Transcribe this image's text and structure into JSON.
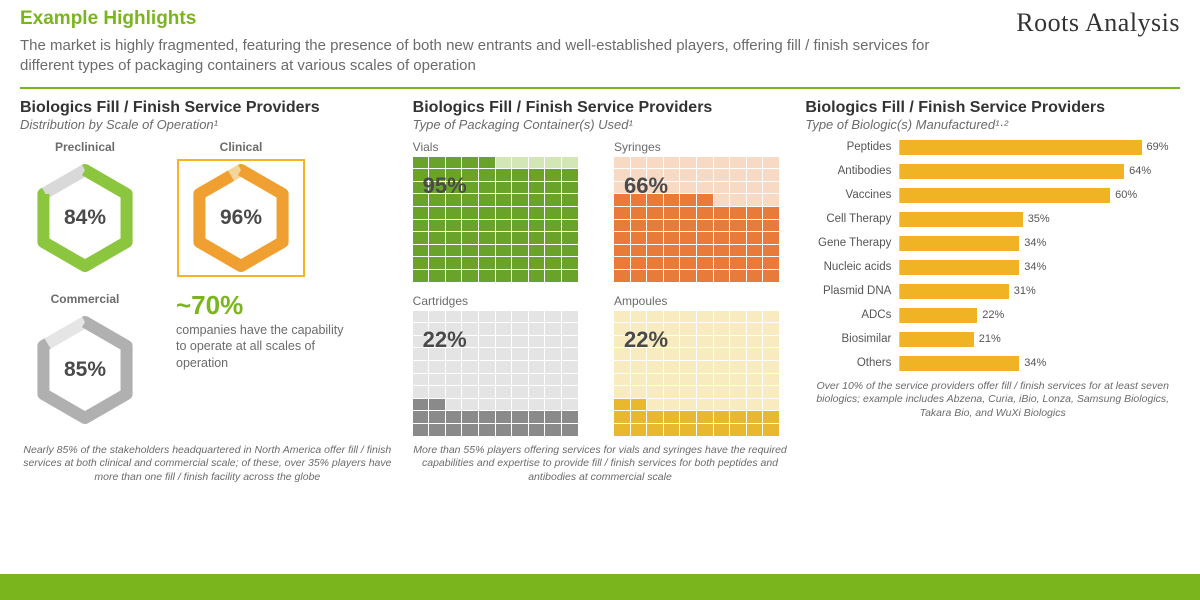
{
  "header": {
    "title": "Example Highlights",
    "subtitle": "The market is highly fragmented, featuring the presence of both new entrants and well-established players, offering fill / finish services for different types of packaging containers at various scales of operation",
    "logo": "Roots Analysis"
  },
  "colors": {
    "accent_green": "#7ab51d",
    "text_gray": "#6b6b6b",
    "rule": "#7ab51d"
  },
  "panel1": {
    "title": "Biologics Fill / Finish Service Providers",
    "subtitle": "Distribution by Scale of Operation¹",
    "hexes": [
      {
        "label": "Preclinical",
        "value": "84%",
        "pct": 84,
        "stroke_fill": "#8cc63f",
        "stroke_empty": "#d9d9d9",
        "highlight": false
      },
      {
        "label": "Clinical",
        "value": "96%",
        "pct": 96,
        "stroke_fill": "#f0a030",
        "stroke_empty": "#f5d49a",
        "highlight": true,
        "highlight_color": "#f5b325"
      },
      {
        "label": "Commercial",
        "value": "85%",
        "pct": 85,
        "stroke_fill": "#b0b0b0",
        "stroke_empty": "#e5e5e5",
        "highlight": false
      }
    ],
    "callout": {
      "big": "~70%",
      "text": "companies have the capability to operate at all scales of operation"
    },
    "footnote": "Nearly 85% of the stakeholders headquartered in North America offer fill / finish services at both clinical and commercial scale; of these, over 35% players have more than one fill / finish facility across the globe"
  },
  "panel2": {
    "title": "Biologics Fill / Finish Service Providers",
    "subtitle": "Type of Packaging Container(s) Used¹",
    "waffles": [
      {
        "label": "Vials",
        "pct": 95,
        "pct_label": "95%",
        "fill": "#6aa329",
        "empty": "#d2e7b5"
      },
      {
        "label": "Syringes",
        "pct": 66,
        "pct_label": "66%",
        "fill": "#e87b3a",
        "empty": "#f8d9c4"
      },
      {
        "label": "Cartridges",
        "pct": 22,
        "pct_label": "22%",
        "fill": "#8a8a8a",
        "empty": "#e4e4e4"
      },
      {
        "label": "Ampoules",
        "pct": 22,
        "pct_label": "22%",
        "fill": "#e8b92e",
        "empty": "#f7ebbf"
      }
    ],
    "footnote": "More than 55% players offering services for vials and syringes have the required capabilities and expertise to provide fill / finish services for both peptides and antibodies at commercial scale"
  },
  "panel3": {
    "title": "Biologics Fill / Finish Service Providers",
    "subtitle": "Type of Biologic(s) Manufactured¹·²",
    "bar_color": "#f0b323",
    "x_max": 80,
    "bars": [
      {
        "label": "Peptides",
        "pct": 69,
        "pct_label": "69%"
      },
      {
        "label": "Antibodies",
        "pct": 64,
        "pct_label": "64%"
      },
      {
        "label": "Vaccines",
        "pct": 60,
        "pct_label": "60%"
      },
      {
        "label": "Cell Therapy",
        "pct": 35,
        "pct_label": "35%"
      },
      {
        "label": "Gene Therapy",
        "pct": 34,
        "pct_label": "34%"
      },
      {
        "label": "Nucleic acids",
        "pct": 34,
        "pct_label": "34%"
      },
      {
        "label": "Plasmid DNA",
        "pct": 31,
        "pct_label": "31%"
      },
      {
        "label": "ADCs",
        "pct": 22,
        "pct_label": "22%"
      },
      {
        "label": "Biosimilar",
        "pct": 21,
        "pct_label": "21%"
      },
      {
        "label": "Others",
        "pct": 34,
        "pct_label": "34%"
      }
    ],
    "footnote": "Over 10% of the service providers offer fill / finish services for at least seven biologics; example includes Abzena, Curia, iBio, Lonza, Samsung Biologics, Takara Bio, and WuXi Biologics"
  }
}
